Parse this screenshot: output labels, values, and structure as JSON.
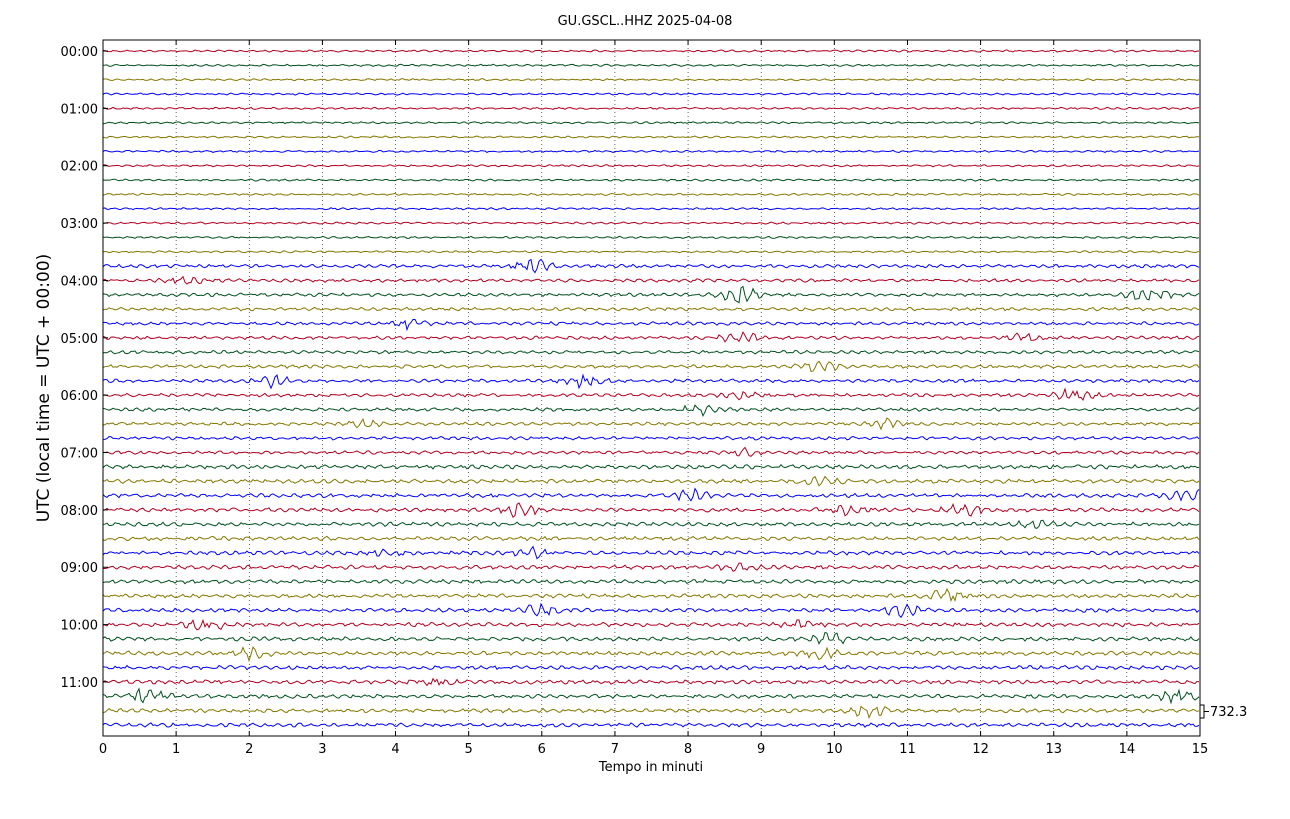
{
  "chart_data": {
    "type": "line",
    "title": "GU.GSCL..HHZ 2025-04-08",
    "xlabel": "Tempo in minuti",
    "ylabel": "UTC (local time = UTC + 00:00)",
    "xlim": [
      0,
      15
    ],
    "x_ticks": [
      "0",
      "1",
      "2",
      "3",
      "4",
      "5",
      "6",
      "7",
      "8",
      "9",
      "10",
      "11",
      "12",
      "13",
      "14",
      "15"
    ],
    "y_ticks": [
      "00:00",
      "01:00",
      "02:00",
      "03:00",
      "04:00",
      "05:00",
      "06:00",
      "07:00",
      "08:00",
      "09:00",
      "10:00",
      "11:00"
    ],
    "trace_count": 48,
    "minutes_per_trace": 15,
    "series_colors": [
      "#b00020",
      "#00501e",
      "#857700",
      "#0000ff"
    ],
    "scale_label": "732.3",
    "grid": "vertical dotted",
    "events": [
      {
        "trace": 15,
        "minute": 5.9,
        "amp": 2.2
      },
      {
        "trace": 16,
        "minute": 1.1,
        "amp": 1.2
      },
      {
        "trace": 17,
        "minute": 8.7,
        "amp": 3.0
      },
      {
        "trace": 17,
        "minute": 14.3,
        "amp": 2.8
      },
      {
        "trace": 19,
        "minute": 4.15,
        "amp": 1.7
      },
      {
        "trace": 20,
        "minute": 8.7,
        "amp": 1.7
      },
      {
        "trace": 20,
        "minute": 12.6,
        "amp": 1.2
      },
      {
        "trace": 22,
        "minute": 9.8,
        "amp": 1.8
      },
      {
        "trace": 23,
        "minute": 2.3,
        "amp": 2.0
      },
      {
        "trace": 23,
        "minute": 6.6,
        "amp": 2.0
      },
      {
        "trace": 24,
        "minute": 8.7,
        "amp": 1.2
      },
      {
        "trace": 24,
        "minute": 13.3,
        "amp": 2.2
      },
      {
        "trace": 25,
        "minute": 8.2,
        "amp": 1.8
      },
      {
        "trace": 26,
        "minute": 3.6,
        "amp": 1.2
      },
      {
        "trace": 26,
        "minute": 10.7,
        "amp": 2.0
      },
      {
        "trace": 28,
        "minute": 8.7,
        "amp": 1.4
      },
      {
        "trace": 30,
        "minute": 9.8,
        "amp": 1.6
      },
      {
        "trace": 31,
        "minute": 8.0,
        "amp": 2.2
      },
      {
        "trace": 31,
        "minute": 14.85,
        "amp": 2.8
      },
      {
        "trace": 32,
        "minute": 5.7,
        "amp": 2.2
      },
      {
        "trace": 32,
        "minute": 10.2,
        "amp": 2.2
      },
      {
        "trace": 32,
        "minute": 11.8,
        "amp": 2.0
      },
      {
        "trace": 33,
        "minute": 12.7,
        "amp": 1.2
      },
      {
        "trace": 35,
        "minute": 3.9,
        "amp": 1.0
      },
      {
        "trace": 35,
        "minute": 5.9,
        "amp": 1.5
      },
      {
        "trace": 36,
        "minute": 8.7,
        "amp": 1.2
      },
      {
        "trace": 38,
        "minute": 11.5,
        "amp": 2.0
      },
      {
        "trace": 39,
        "minute": 6.0,
        "amp": 1.8
      },
      {
        "trace": 39,
        "minute": 10.9,
        "amp": 2.0
      },
      {
        "trace": 40,
        "minute": 1.4,
        "amp": 2.0
      },
      {
        "trace": 40,
        "minute": 9.5,
        "amp": 1.4
      },
      {
        "trace": 41,
        "minute": 9.9,
        "amp": 2.0
      },
      {
        "trace": 42,
        "minute": 2.05,
        "amp": 1.8
      },
      {
        "trace": 42,
        "minute": 9.8,
        "amp": 1.5
      },
      {
        "trace": 44,
        "minute": 4.5,
        "amp": 1.2
      },
      {
        "trace": 45,
        "minute": 0.6,
        "amp": 2.5
      },
      {
        "trace": 45,
        "minute": 14.7,
        "amp": 1.8
      },
      {
        "trace": 46,
        "minute": 10.45,
        "amp": 1.8
      }
    ]
  }
}
